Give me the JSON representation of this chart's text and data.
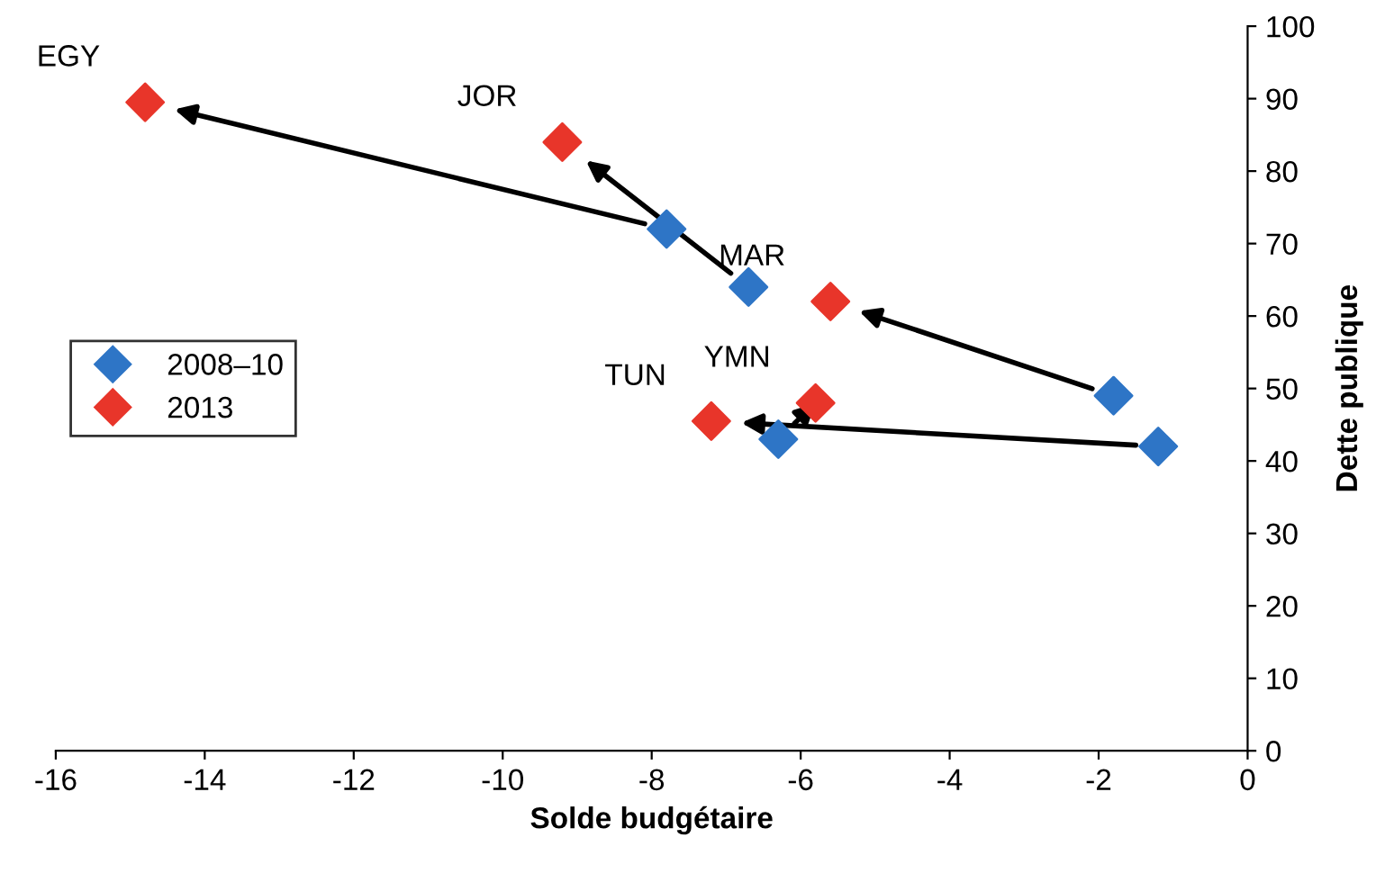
{
  "chart_data": {
    "type": "scatter",
    "xlabel": "Solde budgétaire",
    "ylabel": "Dette publique",
    "marker": "diamond",
    "legend": "center left",
    "grid": false,
    "series": [
      {
        "name": "2008–10",
        "color": "#2e75c6",
        "x": [
          -7.8,
          -6.7,
          -1.8,
          -1.2,
          -6.3
        ],
        "values": [
          72,
          64,
          49,
          42,
          43
        ]
      },
      {
        "name": "2013",
        "color": "#e8352a",
        "x": [
          -14.8,
          -9.2,
          -5.6,
          -7.2,
          -5.8
        ],
        "values": [
          89.5,
          84,
          62,
          45.5,
          48
        ]
      }
    ],
    "annotations": [
      {
        "text": "EGY",
        "x": -14.8,
        "y": 89.5
      },
      {
        "text": "JOR",
        "x": -9.2,
        "y": 84
      },
      {
        "text": "MAR",
        "x": -5.6,
        "y": 62
      },
      {
        "text": "TUN",
        "x": -7.2,
        "y": 45.5
      },
      {
        "text": "YMN",
        "x": -5.8,
        "y": 48
      }
    ],
    "xlim": [
      -16,
      0
    ],
    "xticks": [
      -16,
      -14,
      -12,
      -10,
      -8,
      -6,
      -4,
      -2,
      0
    ],
    "ylim": [
      0,
      100
    ],
    "yticks": [
      0,
      10,
      20,
      30,
      40,
      50,
      60,
      70,
      80,
      90,
      100
    ]
  }
}
